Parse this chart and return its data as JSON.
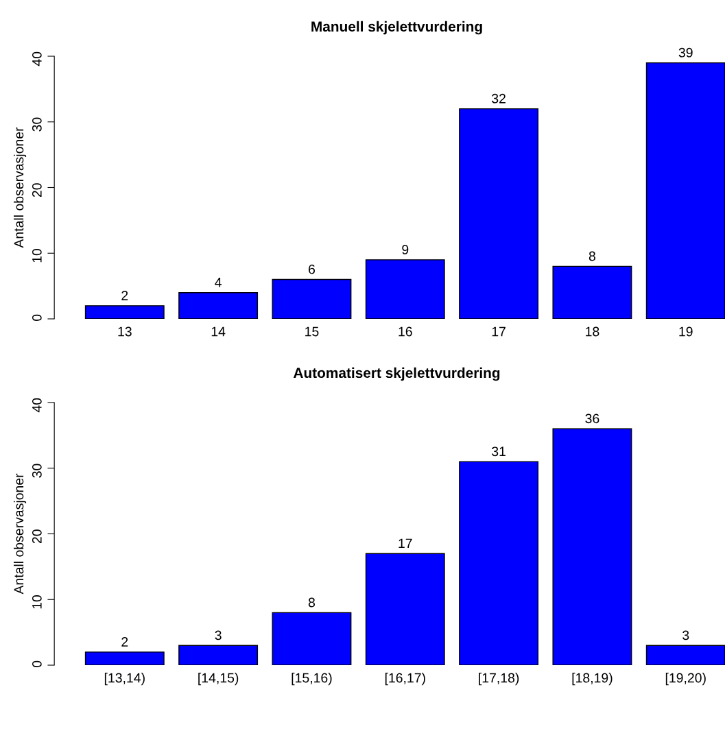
{
  "chart_data": [
    {
      "type": "bar",
      "title": "Manuell skjelettvurdering",
      "ylabel": "Antall observasjoner",
      "categories": [
        "13",
        "14",
        "15",
        "16",
        "17",
        "18",
        "19"
      ],
      "values": [
        2,
        4,
        6,
        9,
        32,
        8,
        39
      ],
      "color": "#0000ff",
      "ylim": [
        0,
        40
      ],
      "yticks": [
        0,
        10,
        20,
        30,
        40
      ],
      "data_labels": true,
      "grid": false,
      "legend": false
    },
    {
      "type": "bar",
      "title": "Automatisert skjelettvurdering",
      "ylabel": "Antall observasjoner",
      "categories": [
        "[13,14)",
        "[14,15)",
        "[15,16)",
        "[16,17)",
        "[17,18)",
        "[18,19)",
        "[19,20)"
      ],
      "values": [
        2,
        3,
        8,
        17,
        31,
        36,
        3
      ],
      "color": "#0000ff",
      "ylim": [
        0,
        40
      ],
      "yticks": [
        0,
        10,
        20,
        30,
        40
      ],
      "data_labels": true,
      "grid": false,
      "legend": false
    }
  ]
}
